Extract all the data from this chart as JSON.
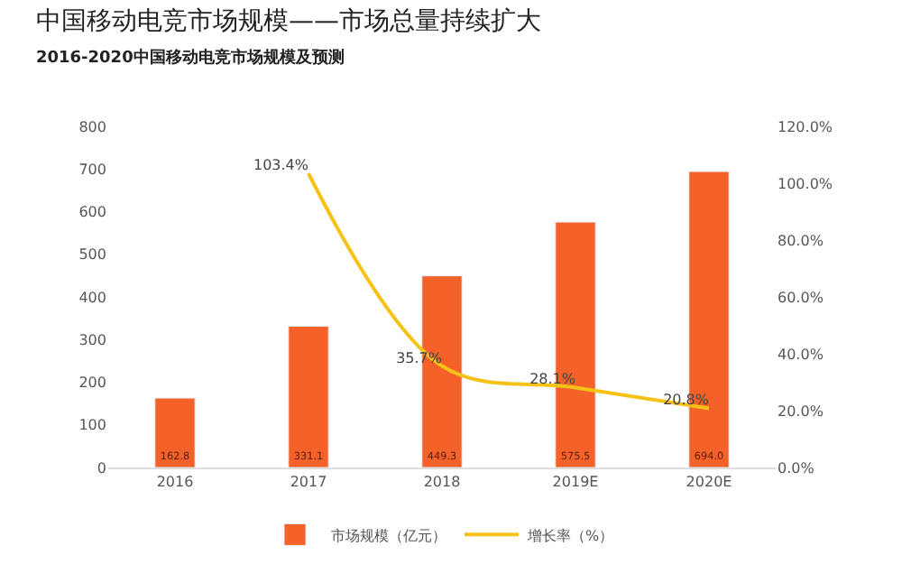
{
  "chart_data": {
    "type": "bar",
    "title": "中国移动电竞市场规模——市场总量持续扩大",
    "subtitle": "2016-2020中国移动电竞市场规模及预测",
    "categories": [
      "2016",
      "2017",
      "2018",
      "2019E",
      "2020E"
    ],
    "series": [
      {
        "name": "市场规模（亿元）",
        "color": "#f4622a",
        "values": [
          162.8,
          331.1,
          449.3,
          575.5,
          694.0
        ],
        "value_labels": [
          "162.8",
          "331.1",
          "449.3",
          "575.5",
          "694.0"
        ]
      },
      {
        "name": "增长率（%）",
        "type": "line",
        "axis": "y2",
        "color": "#f5c218",
        "values": [
          null,
          103.4,
          35.7,
          28.1,
          20.8
        ],
        "value_labels": [
          null,
          "103.4%",
          "35.7%",
          "28.1%",
          "20.8%"
        ]
      }
    ],
    "ylim": [
      0,
      800
    ],
    "yticks": [
      0,
      100,
      200,
      300,
      400,
      500,
      600,
      700,
      800
    ],
    "y2lim": [
      0,
      120
    ],
    "y2ticks": [
      {
        "value": 0,
        "label": "0.0%"
      },
      {
        "value": 20,
        "label": "20.0%"
      },
      {
        "value": 40,
        "label": "40.0%"
      },
      {
        "value": 60,
        "label": "60.0%"
      },
      {
        "value": 80,
        "label": "80.0%"
      },
      {
        "value": 100,
        "label": "100.0%"
      },
      {
        "value": 120,
        "label": "120.0%"
      }
    ],
    "legend": "bottom",
    "marker": "none"
  }
}
